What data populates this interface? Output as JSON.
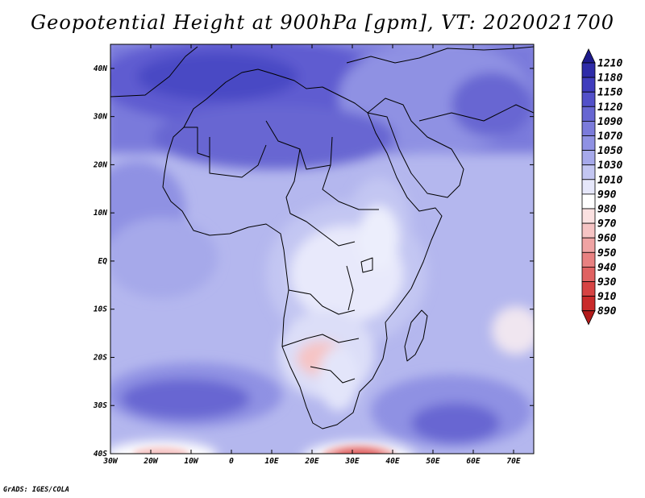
{
  "title": "Geopotential Height at 900hPa [gpm], VT: 2020021700",
  "footer": "GrADS: IGES/COLA",
  "map": {
    "variable": "Geopotential Height",
    "level": "900hPa",
    "units": "gpm",
    "valid_time": "2020021700",
    "lon_range": [
      -30,
      75
    ],
    "lat_range": [
      -40,
      45
    ],
    "x_ticks": [
      "30W",
      "20W",
      "10W",
      "0",
      "10E",
      "20E",
      "30E",
      "40E",
      "50E",
      "60E",
      "70E"
    ],
    "y_ticks": [
      "40N",
      "30N",
      "20N",
      "10N",
      "EQ",
      "10S",
      "20S",
      "30S",
      "40S"
    ]
  },
  "colorbar": {
    "levels": [
      "1210",
      "1180",
      "1150",
      "1120",
      "1090",
      "1070",
      "1050",
      "1030",
      "1010",
      "990",
      "980",
      "970",
      "960",
      "950",
      "940",
      "930",
      "910",
      "890"
    ],
    "colors": [
      "#1d1a8c",
      "#2e2ba8",
      "#3f3cbd",
      "#5250c9",
      "#6766d2",
      "#7b7bdb",
      "#8f91e3",
      "#a6a9ea",
      "#c3c6f2",
      "#e6e7fa",
      "#ffffff",
      "#fbe1e1",
      "#f6c4c4",
      "#efa3a3",
      "#e88181",
      "#e06262",
      "#d64343",
      "#c92a2a",
      "#b31b1b"
    ]
  }
}
